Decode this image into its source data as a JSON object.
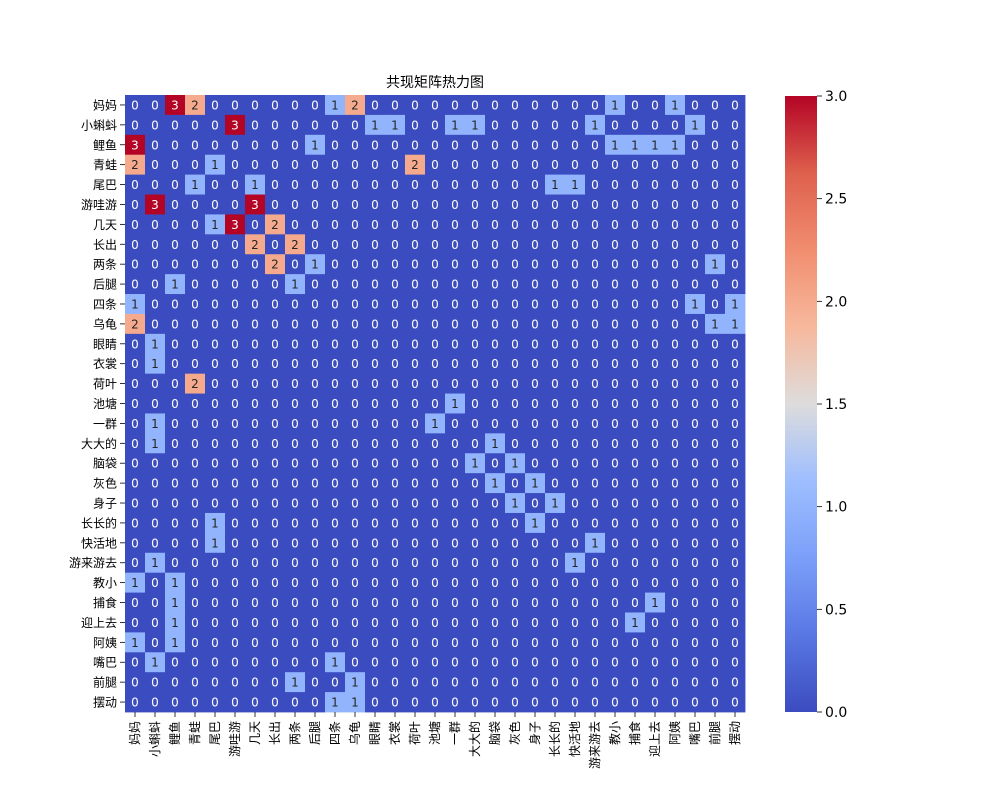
{
  "chart_data": {
    "type": "heatmap",
    "title": "共现矩阵热力图",
    "xlabel": "",
    "ylabel": "",
    "labels": [
      "妈妈",
      "小蝌蚪",
      "鲤鱼",
      "青蛙",
      "尾巴",
      "游哇游",
      "几天",
      "长出",
      "两条",
      "后腿",
      "四条",
      "乌龟",
      "眼睛",
      "衣裳",
      "荷叶",
      "池塘",
      "一群",
      "大大的",
      "脑袋",
      "灰色",
      "身子",
      "长长的",
      "快活地",
      "游来游去",
      "教小",
      "捕食",
      "迎上去",
      "阿姨",
      "嘴巴",
      "前腿",
      "摆动"
    ],
    "matrix": [
      [
        0,
        0,
        3,
        2,
        0,
        0,
        0,
        0,
        0,
        0,
        1,
        2,
        0,
        0,
        0,
        0,
        0,
        0,
        0,
        0,
        0,
        0,
        0,
        0,
        1,
        0,
        0,
        1,
        0,
        0,
        0
      ],
      [
        0,
        0,
        0,
        0,
        0,
        3,
        0,
        0,
        0,
        0,
        0,
        0,
        1,
        1,
        0,
        0,
        1,
        1,
        0,
        0,
        0,
        0,
        0,
        1,
        0,
        0,
        0,
        0,
        1,
        0,
        0
      ],
      [
        3,
        0,
        0,
        0,
        0,
        0,
        0,
        0,
        0,
        1,
        0,
        0,
        0,
        0,
        0,
        0,
        0,
        0,
        0,
        0,
        0,
        0,
        0,
        0,
        1,
        1,
        1,
        1,
        0,
        0,
        0
      ],
      [
        2,
        0,
        0,
        0,
        1,
        0,
        0,
        0,
        0,
        0,
        0,
        0,
        0,
        0,
        2,
        0,
        0,
        0,
        0,
        0,
        0,
        0,
        0,
        0,
        0,
        0,
        0,
        0,
        0,
        0,
        0
      ],
      [
        0,
        0,
        0,
        1,
        0,
        0,
        1,
        0,
        0,
        0,
        0,
        0,
        0,
        0,
        0,
        0,
        0,
        0,
        0,
        0,
        0,
        1,
        1,
        0,
        0,
        0,
        0,
        0,
        0,
        0,
        0
      ],
      [
        0,
        3,
        0,
        0,
        0,
        0,
        3,
        0,
        0,
        0,
        0,
        0,
        0,
        0,
        0,
        0,
        0,
        0,
        0,
        0,
        0,
        0,
        0,
        0,
        0,
        0,
        0,
        0,
        0,
        0,
        0
      ],
      [
        0,
        0,
        0,
        0,
        1,
        3,
        0,
        2,
        0,
        0,
        0,
        0,
        0,
        0,
        0,
        0,
        0,
        0,
        0,
        0,
        0,
        0,
        0,
        0,
        0,
        0,
        0,
        0,
        0,
        0,
        0
      ],
      [
        0,
        0,
        0,
        0,
        0,
        0,
        2,
        0,
        2,
        0,
        0,
        0,
        0,
        0,
        0,
        0,
        0,
        0,
        0,
        0,
        0,
        0,
        0,
        0,
        0,
        0,
        0,
        0,
        0,
        0,
        0
      ],
      [
        0,
        0,
        0,
        0,
        0,
        0,
        0,
        2,
        0,
        1,
        0,
        0,
        0,
        0,
        0,
        0,
        0,
        0,
        0,
        0,
        0,
        0,
        0,
        0,
        0,
        0,
        0,
        0,
        0,
        1,
        0
      ],
      [
        0,
        0,
        1,
        0,
        0,
        0,
        0,
        0,
        1,
        0,
        0,
        0,
        0,
        0,
        0,
        0,
        0,
        0,
        0,
        0,
        0,
        0,
        0,
        0,
        0,
        0,
        0,
        0,
        0,
        0,
        0
      ],
      [
        1,
        0,
        0,
        0,
        0,
        0,
        0,
        0,
        0,
        0,
        0,
        0,
        0,
        0,
        0,
        0,
        0,
        0,
        0,
        0,
        0,
        0,
        0,
        0,
        0,
        0,
        0,
        0,
        1,
        0,
        1
      ],
      [
        2,
        0,
        0,
        0,
        0,
        0,
        0,
        0,
        0,
        0,
        0,
        0,
        0,
        0,
        0,
        0,
        0,
        0,
        0,
        0,
        0,
        0,
        0,
        0,
        0,
        0,
        0,
        0,
        0,
        1,
        1
      ],
      [
        0,
        1,
        0,
        0,
        0,
        0,
        0,
        0,
        0,
        0,
        0,
        0,
        0,
        0,
        0,
        0,
        0,
        0,
        0,
        0,
        0,
        0,
        0,
        0,
        0,
        0,
        0,
        0,
        0,
        0,
        0
      ],
      [
        0,
        1,
        0,
        0,
        0,
        0,
        0,
        0,
        0,
        0,
        0,
        0,
        0,
        0,
        0,
        0,
        0,
        0,
        0,
        0,
        0,
        0,
        0,
        0,
        0,
        0,
        0,
        0,
        0,
        0,
        0
      ],
      [
        0,
        0,
        0,
        2,
        0,
        0,
        0,
        0,
        0,
        0,
        0,
        0,
        0,
        0,
        0,
        0,
        0,
        0,
        0,
        0,
        0,
        0,
        0,
        0,
        0,
        0,
        0,
        0,
        0,
        0,
        0
      ],
      [
        0,
        0,
        0,
        0,
        0,
        0,
        0,
        0,
        0,
        0,
        0,
        0,
        0,
        0,
        0,
        0,
        1,
        0,
        0,
        0,
        0,
        0,
        0,
        0,
        0,
        0,
        0,
        0,
        0,
        0,
        0
      ],
      [
        0,
        1,
        0,
        0,
        0,
        0,
        0,
        0,
        0,
        0,
        0,
        0,
        0,
        0,
        0,
        1,
        0,
        0,
        0,
        0,
        0,
        0,
        0,
        0,
        0,
        0,
        0,
        0,
        0,
        0,
        0
      ],
      [
        0,
        1,
        0,
        0,
        0,
        0,
        0,
        0,
        0,
        0,
        0,
        0,
        0,
        0,
        0,
        0,
        0,
        0,
        1,
        0,
        0,
        0,
        0,
        0,
        0,
        0,
        0,
        0,
        0,
        0,
        0
      ],
      [
        0,
        0,
        0,
        0,
        0,
        0,
        0,
        0,
        0,
        0,
        0,
        0,
        0,
        0,
        0,
        0,
        0,
        1,
        0,
        1,
        0,
        0,
        0,
        0,
        0,
        0,
        0,
        0,
        0,
        0,
        0
      ],
      [
        0,
        0,
        0,
        0,
        0,
        0,
        0,
        0,
        0,
        0,
        0,
        0,
        0,
        0,
        0,
        0,
        0,
        0,
        1,
        0,
        1,
        0,
        0,
        0,
        0,
        0,
        0,
        0,
        0,
        0,
        0
      ],
      [
        0,
        0,
        0,
        0,
        0,
        0,
        0,
        0,
        0,
        0,
        0,
        0,
        0,
        0,
        0,
        0,
        0,
        0,
        0,
        1,
        0,
        1,
        0,
        0,
        0,
        0,
        0,
        0,
        0,
        0,
        0
      ],
      [
        0,
        0,
        0,
        0,
        1,
        0,
        0,
        0,
        0,
        0,
        0,
        0,
        0,
        0,
        0,
        0,
        0,
        0,
        0,
        0,
        1,
        0,
        0,
        0,
        0,
        0,
        0,
        0,
        0,
        0,
        0
      ],
      [
        0,
        0,
        0,
        0,
        1,
        0,
        0,
        0,
        0,
        0,
        0,
        0,
        0,
        0,
        0,
        0,
        0,
        0,
        0,
        0,
        0,
        0,
        0,
        1,
        0,
        0,
        0,
        0,
        0,
        0,
        0
      ],
      [
        0,
        1,
        0,
        0,
        0,
        0,
        0,
        0,
        0,
        0,
        0,
        0,
        0,
        0,
        0,
        0,
        0,
        0,
        0,
        0,
        0,
        0,
        1,
        0,
        0,
        0,
        0,
        0,
        0,
        0,
        0
      ],
      [
        1,
        0,
        1,
        0,
        0,
        0,
        0,
        0,
        0,
        0,
        0,
        0,
        0,
        0,
        0,
        0,
        0,
        0,
        0,
        0,
        0,
        0,
        0,
        0,
        0,
        0,
        0,
        0,
        0,
        0,
        0
      ],
      [
        0,
        0,
        1,
        0,
        0,
        0,
        0,
        0,
        0,
        0,
        0,
        0,
        0,
        0,
        0,
        0,
        0,
        0,
        0,
        0,
        0,
        0,
        0,
        0,
        0,
        0,
        1,
        0,
        0,
        0,
        0
      ],
      [
        0,
        0,
        1,
        0,
        0,
        0,
        0,
        0,
        0,
        0,
        0,
        0,
        0,
        0,
        0,
        0,
        0,
        0,
        0,
        0,
        0,
        0,
        0,
        0,
        0,
        1,
        0,
        0,
        0,
        0,
        0
      ],
      [
        1,
        0,
        1,
        0,
        0,
        0,
        0,
        0,
        0,
        0,
        0,
        0,
        0,
        0,
        0,
        0,
        0,
        0,
        0,
        0,
        0,
        0,
        0,
        0,
        0,
        0,
        0,
        0,
        0,
        0,
        0
      ],
      [
        0,
        1,
        0,
        0,
        0,
        0,
        0,
        0,
        0,
        0,
        1,
        0,
        0,
        0,
        0,
        0,
        0,
        0,
        0,
        0,
        0,
        0,
        0,
        0,
        0,
        0,
        0,
        0,
        0,
        0,
        0
      ],
      [
        0,
        0,
        0,
        0,
        0,
        0,
        0,
        0,
        1,
        0,
        0,
        1,
        0,
        0,
        0,
        0,
        0,
        0,
        0,
        0,
        0,
        0,
        0,
        0,
        0,
        0,
        0,
        0,
        0,
        0,
        0
      ],
      [
        0,
        0,
        0,
        0,
        0,
        0,
        0,
        0,
        0,
        0,
        1,
        1,
        0,
        0,
        0,
        0,
        0,
        0,
        0,
        0,
        0,
        0,
        0,
        0,
        0,
        0,
        0,
        0,
        0,
        0,
        0
      ]
    ],
    "vmin": 0,
    "vmax": 3,
    "colormap": "coolwarm",
    "colorbar_ticks": [
      "0.0",
      "0.5",
      "1.0",
      "1.5",
      "2.0",
      "2.5",
      "3.0"
    ],
    "annotated": true
  }
}
